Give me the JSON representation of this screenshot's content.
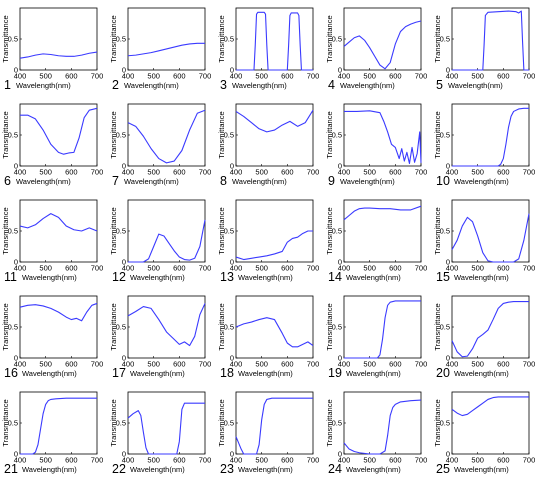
{
  "layout_meta": {
    "ylabel": "Transmittance",
    "xlabel": "Wavelength(nm)",
    "curve_color": "#3a3aff"
  },
  "chart_data": [
    {
      "id": "1",
      "type": "line",
      "xlim": [
        400,
        700
      ],
      "ylim": [
        0,
        1
      ],
      "xticks": [
        400,
        500,
        600,
        700
      ],
      "yticks": [
        0,
        0.5
      ],
      "xlabel": "Wavelength(nm)",
      "ylabel": "Transmittance",
      "x": [
        400,
        430,
        460,
        490,
        520,
        550,
        580,
        610,
        640,
        670,
        700
      ],
      "y": [
        0.19,
        0.21,
        0.24,
        0.26,
        0.25,
        0.23,
        0.22,
        0.22,
        0.24,
        0.27,
        0.29
      ]
    },
    {
      "id": "2",
      "type": "line",
      "xlim": [
        400,
        700
      ],
      "ylim": [
        0,
        1
      ],
      "xticks": [
        400,
        500,
        600,
        700
      ],
      "yticks": [
        0,
        0.5
      ],
      "xlabel": "Wavelength(nm)",
      "ylabel": "Transmittance",
      "x": [
        400,
        430,
        460,
        490,
        520,
        550,
        580,
        610,
        640,
        670,
        700
      ],
      "y": [
        0.23,
        0.24,
        0.26,
        0.28,
        0.31,
        0.34,
        0.37,
        0.4,
        0.42,
        0.43,
        0.43
      ]
    },
    {
      "id": "3",
      "type": "line",
      "xlim": [
        400,
        700
      ],
      "ylim": [
        0,
        1
      ],
      "xticks": [
        400,
        500,
        600,
        700
      ],
      "yticks": [
        0,
        0.5
      ],
      "xlabel": "Wavelength(nm)",
      "ylabel": "Transmittance",
      "x": [
        400,
        470,
        475,
        480,
        485,
        510,
        515,
        520,
        525,
        600,
        605,
        610,
        615,
        640,
        645,
        650,
        655,
        700
      ],
      "y": [
        0,
        0,
        0.4,
        0.9,
        0.93,
        0.93,
        0.9,
        0.4,
        0,
        0,
        0.4,
        0.88,
        0.92,
        0.92,
        0.88,
        0.4,
        0,
        0
      ]
    },
    {
      "id": "4",
      "type": "line",
      "xlim": [
        400,
        700
      ],
      "ylim": [
        0,
        1
      ],
      "xticks": [
        400,
        500,
        600,
        700
      ],
      "yticks": [
        0,
        0.5
      ],
      "xlabel": "Wavelength(nm)",
      "ylabel": "Transmittance",
      "x": [
        400,
        420,
        440,
        460,
        480,
        500,
        520,
        540,
        560,
        580,
        600,
        620,
        640,
        660,
        680,
        700
      ],
      "y": [
        0.38,
        0.45,
        0.52,
        0.55,
        0.48,
        0.36,
        0.22,
        0.08,
        0.02,
        0.12,
        0.42,
        0.62,
        0.7,
        0.74,
        0.77,
        0.79
      ]
    },
    {
      "id": "5",
      "type": "line",
      "xlim": [
        400,
        700
      ],
      "ylim": [
        0,
        1
      ],
      "xticks": [
        400,
        500,
        600,
        700
      ],
      "yticks": [
        0,
        0.5
      ],
      "xlabel": "Wavelength(nm)",
      "ylabel": "Transmittance",
      "x": [
        400,
        500,
        520,
        525,
        530,
        540,
        580,
        620,
        650,
        660,
        670,
        675,
        680,
        700
      ],
      "y": [
        0,
        0,
        0,
        0.4,
        0.88,
        0.93,
        0.94,
        0.95,
        0.94,
        0.92,
        0.95,
        0.45,
        0,
        0
      ]
    },
    {
      "id": "6",
      "type": "line",
      "xlim": [
        400,
        700
      ],
      "ylim": [
        0,
        1
      ],
      "xticks": [
        400,
        500,
        600,
        700
      ],
      "yticks": [
        0,
        0.5
      ],
      "xlabel": "Wavelength(nm)",
      "ylabel": "Transmittance",
      "x": [
        400,
        430,
        460,
        490,
        520,
        550,
        570,
        590,
        610,
        630,
        650,
        670,
        700
      ],
      "y": [
        0.82,
        0.82,
        0.76,
        0.58,
        0.35,
        0.22,
        0.19,
        0.21,
        0.22,
        0.45,
        0.78,
        0.9,
        0.93
      ]
    },
    {
      "id": "7",
      "type": "line",
      "xlim": [
        400,
        700
      ],
      "ylim": [
        0,
        1
      ],
      "xticks": [
        400,
        500,
        600,
        700
      ],
      "yticks": [
        0,
        0.5
      ],
      "xlabel": "Wavelength(nm)",
      "ylabel": "Transmittance",
      "x": [
        400,
        430,
        460,
        490,
        520,
        550,
        580,
        610,
        640,
        670,
        700
      ],
      "y": [
        0.7,
        0.64,
        0.48,
        0.28,
        0.12,
        0.05,
        0.08,
        0.25,
        0.58,
        0.85,
        0.9
      ]
    },
    {
      "id": "8",
      "type": "line",
      "xlim": [
        400,
        700
      ],
      "ylim": [
        0,
        1
      ],
      "xticks": [
        400,
        500,
        600,
        700
      ],
      "yticks": [
        0,
        0.5
      ],
      "xlabel": "Wavelength(nm)",
      "ylabel": "Transmittance",
      "x": [
        400,
        430,
        460,
        490,
        520,
        550,
        580,
        610,
        640,
        670,
        700
      ],
      "y": [
        0.88,
        0.8,
        0.7,
        0.6,
        0.55,
        0.58,
        0.66,
        0.72,
        0.64,
        0.7,
        0.9
      ]
    },
    {
      "id": "9",
      "type": "line",
      "xlim": [
        400,
        700
      ],
      "ylim": [
        0,
        1
      ],
      "xticks": [
        400,
        500,
        600,
        700
      ],
      "yticks": [
        0,
        0.5
      ],
      "xlabel": "Wavelength(nm)",
      "ylabel": "Transmittance",
      "x": [
        400,
        450,
        500,
        540,
        555,
        570,
        585,
        600,
        615,
        625,
        635,
        645,
        655,
        665,
        675,
        685,
        695,
        700
      ],
      "y": [
        0.88,
        0.88,
        0.89,
        0.86,
        0.72,
        0.55,
        0.35,
        0.3,
        0.12,
        0.28,
        0.08,
        0.22,
        0.04,
        0.3,
        0.06,
        0.2,
        0.55,
        0.05
      ]
    },
    {
      "id": "10",
      "type": "line",
      "xlim": [
        400,
        700
      ],
      "ylim": [
        0,
        1
      ],
      "xticks": [
        400,
        500,
        600,
        700
      ],
      "yticks": [
        0,
        0.5
      ],
      "xlabel": "Wavelength(nm)",
      "ylabel": "Transmittance",
      "x": [
        400,
        500,
        580,
        590,
        600,
        610,
        620,
        630,
        640,
        660,
        680,
        700
      ],
      "y": [
        0,
        0,
        0,
        0.03,
        0.12,
        0.35,
        0.62,
        0.8,
        0.88,
        0.92,
        0.93,
        0.93
      ]
    },
    {
      "id": "11",
      "type": "line",
      "xlim": [
        400,
        700
      ],
      "ylim": [
        0,
        1
      ],
      "xticks": [
        400,
        500,
        600,
        700
      ],
      "yticks": [
        0,
        0.5
      ],
      "xlabel": "Wavelength(nm)",
      "ylabel": "Transmittance",
      "x": [
        400,
        430,
        460,
        490,
        520,
        550,
        580,
        610,
        640,
        670,
        700
      ],
      "y": [
        0.58,
        0.55,
        0.6,
        0.7,
        0.78,
        0.72,
        0.58,
        0.52,
        0.5,
        0.55,
        0.5
      ]
    },
    {
      "id": "12",
      "type": "line",
      "xlim": [
        400,
        700
      ],
      "ylim": [
        0,
        1
      ],
      "xticks": [
        400,
        500,
        600,
        700
      ],
      "yticks": [
        0,
        0.5
      ],
      "xlabel": "Wavelength(nm)",
      "ylabel": "Transmittance",
      "x": [
        400,
        460,
        480,
        500,
        520,
        540,
        560,
        580,
        600,
        620,
        640,
        660,
        680,
        700
      ],
      "y": [
        0,
        0,
        0.05,
        0.25,
        0.45,
        0.42,
        0.3,
        0.18,
        0.08,
        0.04,
        0.03,
        0.06,
        0.25,
        0.68
      ]
    },
    {
      "id": "13",
      "type": "line",
      "xlim": [
        400,
        700
      ],
      "ylim": [
        0,
        1
      ],
      "xticks": [
        400,
        500,
        600,
        700
      ],
      "yticks": [
        0,
        0.5
      ],
      "xlabel": "Wavelength(nm)",
      "ylabel": "Transmittance",
      "x": [
        400,
        430,
        460,
        490,
        520,
        550,
        580,
        600,
        620,
        640,
        660,
        680,
        700
      ],
      "y": [
        0.08,
        0.04,
        0.06,
        0.08,
        0.1,
        0.13,
        0.17,
        0.32,
        0.38,
        0.4,
        0.46,
        0.5,
        0.5
      ]
    },
    {
      "id": "14",
      "type": "line",
      "xlim": [
        400,
        700
      ],
      "ylim": [
        0,
        1
      ],
      "xticks": [
        400,
        500,
        600,
        700
      ],
      "yticks": [
        0,
        0.5
      ],
      "xlabel": "Wavelength(nm)",
      "ylabel": "Transmittance",
      "x": [
        400,
        420,
        440,
        460,
        480,
        500,
        540,
        580,
        620,
        660,
        700
      ],
      "y": [
        0.68,
        0.75,
        0.82,
        0.86,
        0.87,
        0.87,
        0.86,
        0.86,
        0.84,
        0.84,
        0.9
      ]
    },
    {
      "id": "15",
      "type": "line",
      "xlim": [
        400,
        700
      ],
      "ylim": [
        0,
        1
      ],
      "xticks": [
        400,
        500,
        600,
        700
      ],
      "yticks": [
        0,
        0.5
      ],
      "xlabel": "Wavelength(nm)",
      "ylabel": "Transmittance",
      "x": [
        400,
        420,
        440,
        460,
        480,
        500,
        520,
        540,
        560,
        600,
        640,
        660,
        680,
        700
      ],
      "y": [
        0.2,
        0.35,
        0.58,
        0.72,
        0.65,
        0.42,
        0.15,
        0.02,
        0,
        0,
        0,
        0.05,
        0.35,
        0.78
      ]
    },
    {
      "id": "16",
      "type": "line",
      "xlim": [
        400,
        700
      ],
      "ylim": [
        0,
        1
      ],
      "xticks": [
        400,
        500,
        600,
        700
      ],
      "yticks": [
        0,
        0.5
      ],
      "xlabel": "Wavelength(nm)",
      "ylabel": "Transmittance",
      "x": [
        400,
        430,
        460,
        490,
        520,
        550,
        580,
        600,
        620,
        640,
        660,
        680,
        700
      ],
      "y": [
        0.82,
        0.85,
        0.86,
        0.84,
        0.8,
        0.74,
        0.66,
        0.62,
        0.64,
        0.6,
        0.74,
        0.85,
        0.88
      ]
    },
    {
      "id": "17",
      "type": "line",
      "xlim": [
        400,
        700
      ],
      "ylim": [
        0,
        1
      ],
      "xticks": [
        400,
        500,
        600,
        700
      ],
      "yticks": [
        0,
        0.5
      ],
      "xlabel": "Wavelength(nm)",
      "ylabel": "Transmittance",
      "x": [
        400,
        430,
        460,
        490,
        520,
        550,
        580,
        600,
        620,
        640,
        660,
        680,
        700
      ],
      "y": [
        0.68,
        0.75,
        0.83,
        0.8,
        0.62,
        0.42,
        0.3,
        0.22,
        0.26,
        0.2,
        0.35,
        0.7,
        0.88
      ]
    },
    {
      "id": "18",
      "type": "line",
      "xlim": [
        400,
        700
      ],
      "ylim": [
        0,
        1
      ],
      "xticks": [
        400,
        500,
        600,
        700
      ],
      "yticks": [
        0,
        0.5
      ],
      "xlabel": "Wavelength(nm)",
      "ylabel": "Transmittance",
      "x": [
        400,
        430,
        460,
        490,
        520,
        550,
        580,
        600,
        620,
        640,
        660,
        680,
        700
      ],
      "y": [
        0.5,
        0.55,
        0.58,
        0.62,
        0.65,
        0.62,
        0.4,
        0.24,
        0.18,
        0.18,
        0.22,
        0.26,
        0.2
      ]
    },
    {
      "id": "19",
      "type": "line",
      "xlim": [
        400,
        700
      ],
      "ylim": [
        0,
        1
      ],
      "xticks": [
        400,
        500,
        600,
        700
      ],
      "yticks": [
        0,
        0.5
      ],
      "xlabel": "Wavelength(nm)",
      "ylabel": "Transmittance",
      "x": [
        400,
        500,
        530,
        540,
        550,
        560,
        570,
        580,
        600,
        640,
        700
      ],
      "y": [
        0,
        0,
        0,
        0.05,
        0.3,
        0.65,
        0.85,
        0.9,
        0.92,
        0.92,
        0.92
      ]
    },
    {
      "id": "20",
      "type": "line",
      "xlim": [
        400,
        700
      ],
      "ylim": [
        0,
        1
      ],
      "xticks": [
        400,
        500,
        600,
        700
      ],
      "yticks": [
        0,
        0.5
      ],
      "xlabel": "Wavelength(nm)",
      "ylabel": "Transmittance",
      "x": [
        400,
        420,
        440,
        460,
        480,
        500,
        520,
        540,
        560,
        580,
        600,
        620,
        640,
        660,
        700
      ],
      "y": [
        0.28,
        0.1,
        0.02,
        0.03,
        0.15,
        0.32,
        0.38,
        0.45,
        0.62,
        0.8,
        0.88,
        0.9,
        0.91,
        0.91,
        0.91
      ]
    },
    {
      "id": "21",
      "type": "line",
      "xlim": [
        400,
        700
      ],
      "ylim": [
        0,
        1
      ],
      "xticks": [
        400,
        500,
        600,
        700
      ],
      "yticks": [
        0,
        0.5
      ],
      "xlabel": "Wavelength(nm)",
      "ylabel": "Transmittance",
      "x": [
        400,
        450,
        460,
        470,
        480,
        490,
        500,
        510,
        520,
        540,
        580,
        640,
        700
      ],
      "y": [
        0,
        0,
        0.03,
        0.15,
        0.4,
        0.65,
        0.8,
        0.86,
        0.88,
        0.89,
        0.9,
        0.9,
        0.9
      ]
    },
    {
      "id": "22",
      "type": "line",
      "xlim": [
        400,
        700
      ],
      "ylim": [
        0,
        1
      ],
      "xticks": [
        400,
        500,
        600,
        700
      ],
      "yticks": [
        0,
        0.5
      ],
      "xlabel": "Wavelength(nm)",
      "ylabel": "Transmittance",
      "x": [
        400,
        420,
        440,
        450,
        460,
        470,
        480,
        500,
        560,
        590,
        600,
        610,
        620,
        640,
        700
      ],
      "y": [
        0.58,
        0.65,
        0.7,
        0.62,
        0.35,
        0.1,
        0,
        0,
        0,
        0,
        0.2,
        0.72,
        0.82,
        0.82,
        0.82
      ]
    },
    {
      "id": "23",
      "type": "line",
      "xlim": [
        400,
        700
      ],
      "ylim": [
        0,
        1
      ],
      "xticks": [
        400,
        500,
        600,
        700
      ],
      "yticks": [
        0,
        0.5
      ],
      "xlabel": "Wavelength(nm)",
      "ylabel": "Transmittance",
      "x": [
        400,
        410,
        420,
        430,
        450,
        480,
        490,
        500,
        510,
        520,
        540,
        580,
        640,
        700
      ],
      "y": [
        0.28,
        0.18,
        0.08,
        0,
        0,
        0,
        0.15,
        0.55,
        0.8,
        0.88,
        0.9,
        0.9,
        0.9,
        0.9
      ]
    },
    {
      "id": "24",
      "type": "line",
      "xlim": [
        400,
        700
      ],
      "ylim": [
        0,
        1
      ],
      "xticks": [
        400,
        500,
        600,
        700
      ],
      "yticks": [
        0,
        0.5
      ],
      "xlabel": "Wavelength(nm)",
      "ylabel": "Transmittance",
      "x": [
        400,
        420,
        440,
        460,
        500,
        540,
        560,
        570,
        580,
        590,
        600,
        620,
        660,
        700
      ],
      "y": [
        0.18,
        0.08,
        0.04,
        0.02,
        0,
        0,
        0.05,
        0.3,
        0.62,
        0.75,
        0.8,
        0.84,
        0.86,
        0.87
      ]
    },
    {
      "id": "25",
      "type": "line",
      "xlim": [
        400,
        700
      ],
      "ylim": [
        0,
        1
      ],
      "xticks": [
        400,
        500,
        600,
        700
      ],
      "yticks": [
        0,
        0.5
      ],
      "xlabel": "Wavelength(nm)",
      "ylabel": "Transmittance",
      "x": [
        400,
        420,
        440,
        460,
        480,
        500,
        520,
        540,
        560,
        580,
        600,
        640,
        700
      ],
      "y": [
        0.72,
        0.66,
        0.62,
        0.64,
        0.7,
        0.76,
        0.82,
        0.88,
        0.91,
        0.92,
        0.92,
        0.92,
        0.92
      ]
    }
  ]
}
